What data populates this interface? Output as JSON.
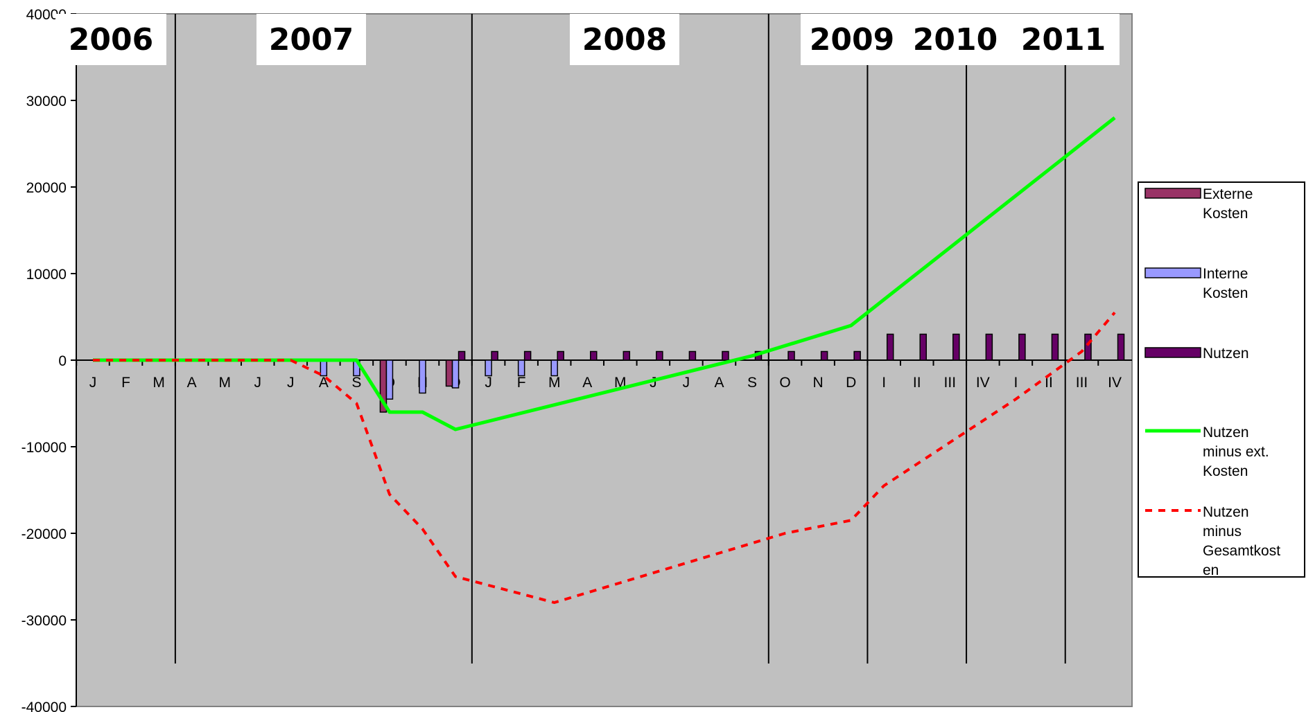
{
  "chart_data": {
    "type": "bar",
    "title": "",
    "xlabel": "",
    "ylabel": "",
    "ylim": [
      -40000,
      40000
    ],
    "yticks": [
      {
        "value": 40000,
        "label": "40000"
      },
      {
        "value": 30000,
        "label": "30000"
      },
      {
        "value": 20000,
        "label": "20000"
      },
      {
        "value": 10000,
        "label": "10000"
      },
      {
        "value": 0,
        "label": "0"
      },
      {
        "value": -10000,
        "label": "-10000"
      },
      {
        "value": -20000,
        "label": "-20000"
      },
      {
        "value": -30000,
        "label": "-30000"
      },
      {
        "value": -40000,
        "label": "-40000"
      }
    ],
    "categories": [
      "J",
      "F",
      "M",
      "A",
      "M",
      "J",
      "J",
      "A",
      "S",
      "O",
      "N",
      "D",
      "J",
      "F",
      "M",
      "A",
      "M",
      "J",
      "J",
      "A",
      "S",
      "O",
      "N",
      "D",
      "I",
      "II",
      "III",
      "IV",
      "I",
      "II",
      "III",
      "IV"
    ],
    "years": [
      {
        "label": "2006",
        "start": 0
      },
      {
        "label": "2007",
        "start": 3
      },
      {
        "label": "2008",
        "start": 12
      },
      {
        "label": "2009",
        "start": 21
      },
      {
        "label": "2010",
        "start": 24
      },
      {
        "label": "2011",
        "start": 27
      }
    ],
    "year_dividers": [
      3,
      12,
      21,
      24,
      27,
      30
    ],
    "grid": false,
    "legend_position": "right",
    "series": [
      {
        "name": "Externe Kosten",
        "kind": "bar",
        "color": "#993366",
        "values": [
          0,
          0,
          0,
          0,
          0,
          0,
          0,
          0,
          0,
          -6000,
          0,
          -3000,
          0,
          0,
          0,
          0,
          0,
          0,
          0,
          0,
          0,
          0,
          0,
          0,
          0,
          0,
          0,
          0,
          0,
          0,
          0,
          0
        ]
      },
      {
        "name": "Interne Kosten",
        "kind": "bar",
        "color": "#9999ff",
        "values": [
          0,
          0,
          0,
          0,
          0,
          0,
          0,
          -1800,
          -1800,
          -4500,
          -3800,
          -3200,
          -1800,
          -1800,
          -1800,
          0,
          0,
          0,
          0,
          0,
          0,
          0,
          0,
          0,
          0,
          0,
          0,
          0,
          0,
          0,
          0,
          0
        ]
      },
      {
        "name": "Nutzen",
        "kind": "bar",
        "color": "#660066",
        "values": [
          0,
          0,
          0,
          0,
          0,
          0,
          0,
          0,
          0,
          0,
          0,
          1000,
          1000,
          1000,
          1000,
          1000,
          1000,
          1000,
          1000,
          1000,
          1000,
          1000,
          1000,
          1000,
          3000,
          3000,
          3000,
          3000,
          3000,
          3000,
          3000,
          3000
        ]
      },
      {
        "name": "Nutzen minus ext. Kosten",
        "kind": "line",
        "color": "#00ff00",
        "dashed": false,
        "points": [
          [
            0,
            0
          ],
          [
            8,
            0
          ],
          [
            9,
            -6000
          ],
          [
            10,
            -6000
          ],
          [
            11,
            -8000
          ],
          [
            20,
            500
          ],
          [
            23,
            4000
          ],
          [
            31,
            28000
          ]
        ]
      },
      {
        "name": "Nutzen minus Gesamtkosten",
        "kind": "line",
        "color": "#ff0000",
        "dashed": true,
        "points": [
          [
            0,
            0
          ],
          [
            6,
            0
          ],
          [
            7,
            -1800
          ],
          [
            8,
            -5000
          ],
          [
            9,
            -15500
          ],
          [
            10,
            -19500
          ],
          [
            11,
            -25000
          ],
          [
            12,
            -26000
          ],
          [
            14,
            -28000
          ],
          [
            21,
            -20000
          ],
          [
            23,
            -18500
          ],
          [
            24,
            -14500
          ],
          [
            26,
            -9500
          ],
          [
            28,
            -4500
          ],
          [
            30,
            1000
          ],
          [
            31,
            5500
          ]
        ]
      }
    ],
    "legend": [
      {
        "label_lines": [
          "Externe",
          "Kosten"
        ],
        "swatch": "bar",
        "color": "#993366"
      },
      {
        "label_lines": [
          "Interne",
          "Kosten"
        ],
        "swatch": "bar",
        "color": "#9999ff"
      },
      {
        "label_lines": [
          "Nutzen"
        ],
        "swatch": "bar",
        "color": "#660066"
      },
      {
        "label_lines": [
          "Nutzen",
          "minus ext.",
          "Kosten"
        ],
        "swatch": "line",
        "color": "#00ff00",
        "dashed": false
      },
      {
        "label_lines": [
          "Nutzen",
          "minus",
          "Gesamtkost",
          "en"
        ],
        "swatch": "line",
        "color": "#ff0000",
        "dashed": true
      }
    ]
  }
}
